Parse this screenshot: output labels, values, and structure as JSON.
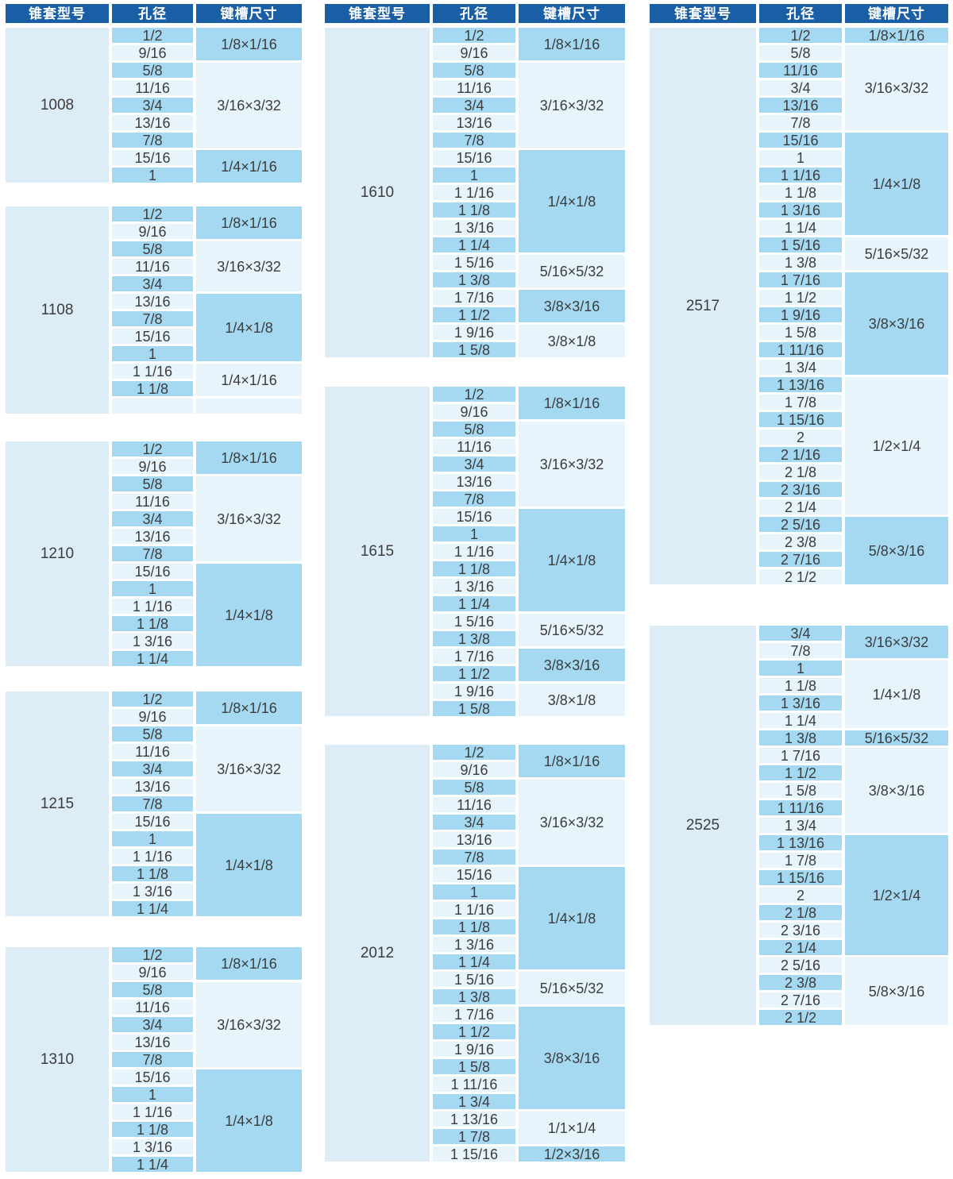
{
  "colors": {
    "header_bg": "#1a5ea5",
    "header_text": "#ffffff",
    "row_hl": "#a4d9f1",
    "row_lt": "#e8f4fb",
    "model_bg": "#dcedf8",
    "text": "#3c3c3c",
    "page_bg": "#ffffff"
  },
  "header": {
    "model": "锥套型号",
    "bore": "孔径",
    "keyway": "键槽尺寸"
  },
  "columns": [
    {
      "blocks": [
        {
          "model": "1008",
          "rows": [
            "1/2",
            "9/16",
            "5/8",
            "11/16",
            "3/4",
            "13/16",
            "7/8",
            "15/16",
            "1"
          ],
          "keyways": [
            {
              "label": "1/8×1/16",
              "span": 2,
              "shade": "hl"
            },
            {
              "label": "3/16×3/32",
              "span": 5,
              "shade": "lt"
            },
            {
              "label": "1/4×1/16",
              "span": 2,
              "shade": "hl"
            }
          ]
        },
        {
          "model": "1108",
          "rows": [
            "1/2",
            "9/16",
            "5/8",
            "11/16",
            "3/4",
            "13/16",
            "7/8",
            "15/16",
            "1",
            "1 1/16",
            "1 1/8",
            ""
          ],
          "keyways": [
            {
              "label": "1/8×1/16",
              "span": 2,
              "shade": "hl"
            },
            {
              "label": "3/16×3/32",
              "span": 3,
              "shade": "lt"
            },
            {
              "label": "1/4×1/8",
              "span": 4,
              "shade": "hl"
            },
            {
              "label": "1/4×1/16",
              "span": 2,
              "shade": "lt"
            },
            {
              "label": "",
              "span": 1,
              "shade": "lt"
            }
          ]
        },
        {
          "model": "1210",
          "rows": [
            "1/2",
            "9/16",
            "5/8",
            "11/16",
            "3/4",
            "13/16",
            "7/8",
            "15/16",
            "1",
            "1 1/16",
            "1 1/8",
            "1 3/16",
            "1 1/4"
          ],
          "keyways": [
            {
              "label": "1/8×1/16",
              "span": 2,
              "shade": "hl"
            },
            {
              "label": "3/16×3/32",
              "span": 5,
              "shade": "lt"
            },
            {
              "label": "1/4×1/8",
              "span": 6,
              "shade": "hl"
            }
          ]
        },
        {
          "model": "1215",
          "rows": [
            "1/2",
            "9/16",
            "5/8",
            "11/16",
            "3/4",
            "13/16",
            "7/8",
            "15/16",
            "1",
            "1 1/16",
            "1 1/8",
            "1 3/16",
            "1 1/4"
          ],
          "keyways": [
            {
              "label": "1/8×1/16",
              "span": 2,
              "shade": "hl"
            },
            {
              "label": "3/16×3/32",
              "span": 5,
              "shade": "lt"
            },
            {
              "label": "1/4×1/8",
              "span": 6,
              "shade": "hl"
            }
          ]
        },
        {
          "model": "1310",
          "rows": [
            "1/2",
            "9/16",
            "5/8",
            "11/16",
            "3/4",
            "13/16",
            "7/8",
            "15/16",
            "1",
            "1 1/16",
            "1 1/8",
            "1 3/16",
            "1 1/4"
          ],
          "keyways": [
            {
              "label": "1/8×1/16",
              "span": 2,
              "shade": "hl"
            },
            {
              "label": "3/16×3/32",
              "span": 5,
              "shade": "lt"
            },
            {
              "label": "1/4×1/8",
              "span": 6,
              "shade": "hl"
            }
          ]
        }
      ]
    },
    {
      "blocks": [
        {
          "model": "1610",
          "rows": [
            "1/2",
            "9/16",
            "5/8",
            "11/16",
            "3/4",
            "13/16",
            "7/8",
            "15/16",
            "1",
            "1 1/16",
            "1 1/8",
            "1 3/16",
            "1 1/4",
            "1 5/16",
            "1 3/8",
            "1 7/16",
            "1 1/2",
            "1 9/16",
            "1 5/8"
          ],
          "keyways": [
            {
              "label": "1/8×1/16",
              "span": 2,
              "shade": "hl"
            },
            {
              "label": "3/16×3/32",
              "span": 5,
              "shade": "lt"
            },
            {
              "label": "1/4×1/8",
              "span": 6,
              "shade": "hl"
            },
            {
              "label": "5/16×5/32",
              "span": 2,
              "shade": "lt"
            },
            {
              "label": "3/8×3/16",
              "span": 2,
              "shade": "hl"
            },
            {
              "label": "3/8×1/8",
              "span": 2,
              "shade": "lt"
            }
          ]
        },
        {
          "model": "1615",
          "rows": [
            "1/2",
            "9/16",
            "5/8",
            "11/16",
            "3/4",
            "13/16",
            "7/8",
            "15/16",
            "1",
            "1 1/16",
            "1 1/8",
            "1 3/16",
            "1 1/4",
            "1 5/16",
            "1 3/8",
            "1 7/16",
            "1 1/2",
            "1 9/16",
            "1 5/8"
          ],
          "keyways": [
            {
              "label": "1/8×1/16",
              "span": 2,
              "shade": "hl"
            },
            {
              "label": "3/16×3/32",
              "span": 5,
              "shade": "lt"
            },
            {
              "label": "1/4×1/8",
              "span": 6,
              "shade": "hl"
            },
            {
              "label": "5/16×5/32",
              "span": 2,
              "shade": "lt"
            },
            {
              "label": "3/8×3/16",
              "span": 2,
              "shade": "hl"
            },
            {
              "label": "3/8×1/8",
              "span": 2,
              "shade": "lt"
            }
          ]
        },
        {
          "model": "2012",
          "rows": [
            "1/2",
            "9/16",
            "5/8",
            "11/16",
            "3/4",
            "13/16",
            "7/8",
            "15/16",
            "1",
            "1 1/16",
            "1 1/8",
            "1 3/16",
            "1 1/4",
            "1 5/16",
            "1 3/8",
            "1 7/16",
            "1 1/2",
            "1 9/16",
            "1 5/8",
            "1 11/16",
            "1 3/4",
            "1 13/16",
            "1 7/8",
            "1 15/16"
          ],
          "keyways": [
            {
              "label": "1/8×1/16",
              "span": 2,
              "shade": "hl"
            },
            {
              "label": "3/16×3/32",
              "span": 5,
              "shade": "lt"
            },
            {
              "label": "1/4×1/8",
              "span": 6,
              "shade": "hl"
            },
            {
              "label": "5/16×5/32",
              "span": 2,
              "shade": "lt"
            },
            {
              "label": "3/8×3/16",
              "span": 6,
              "shade": "hl"
            },
            {
              "label": "1/1×1/4",
              "span": 2,
              "shade": "lt"
            },
            {
              "label": "1/2×3/16",
              "span": 1,
              "shade": "hl"
            }
          ]
        }
      ]
    },
    {
      "blocks": [
        {
          "model": "2517",
          "rows": [
            "1/2",
            "5/8",
            "11/16",
            "3/4",
            "13/16",
            "7/8",
            "15/16",
            "1",
            "1 1/16",
            "1 1/8",
            "1 3/16",
            "1 1/4",
            "1 5/16",
            "1 3/8",
            "1 7/16",
            "1 1/2",
            "1 9/16",
            "1 5/8",
            "1 11/16",
            "1 3/4",
            "1 13/16",
            "1 7/8",
            "1 15/16",
            "2",
            "2 1/16",
            "2 1/8",
            "2 3/16",
            "2 1/4",
            "2 5/16",
            "2 3/8",
            "2 7/16",
            "2 1/2"
          ],
          "keyways": [
            {
              "label": "1/8×1/16",
              "span": 1,
              "shade": "hl"
            },
            {
              "label": "3/16×3/32",
              "span": 5,
              "shade": "lt"
            },
            {
              "label": "1/4×1/8",
              "span": 6,
              "shade": "hl"
            },
            {
              "label": "5/16×5/32",
              "span": 2,
              "shade": "lt"
            },
            {
              "label": "3/8×3/16",
              "span": 6,
              "shade": "hl"
            },
            {
              "label": "1/2×1/4",
              "span": 8,
              "shade": "lt"
            },
            {
              "label": "5/8×3/16",
              "span": 4,
              "shade": "hl"
            }
          ]
        },
        {
          "model": "2525",
          "rows": [
            "3/4",
            "7/8",
            "1",
            "1 1/8",
            "1 3/16",
            "1 1/4",
            "1 3/8",
            "1 7/16",
            "1 1/2",
            "1 5/8",
            "1 11/16",
            "1 3/4",
            "1 13/16",
            "1 7/8",
            "1 15/16",
            "2",
            "2 1/8",
            "2 3/16",
            "2 1/4",
            "2 5/16",
            "2 3/8",
            "2 7/16",
            "2 1/2"
          ],
          "keyways": [
            {
              "label": "3/16×3/32",
              "span": 2,
              "shade": "hl"
            },
            {
              "label": "1/4×1/8",
              "span": 4,
              "shade": "lt"
            },
            {
              "label": "5/16×5/32",
              "span": 1,
              "shade": "hl"
            },
            {
              "label": "3/8×3/16",
              "span": 5,
              "shade": "lt"
            },
            {
              "label": "1/2×1/4",
              "span": 7,
              "shade": "hl"
            },
            {
              "label": "5/8×3/16",
              "span": 4,
              "shade": "lt"
            }
          ]
        }
      ]
    }
  ]
}
